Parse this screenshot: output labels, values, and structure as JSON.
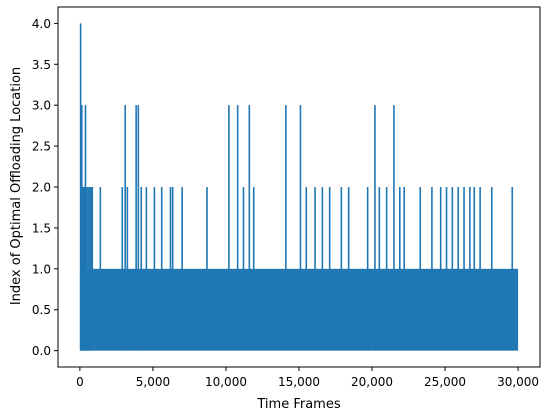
{
  "chart_data": {
    "type": "line",
    "title": "",
    "xlabel": "Time Frames",
    "ylabel": "Index of Optimal Offloading Location",
    "xlim": [
      -1500,
      31500
    ],
    "ylim": [
      -0.2,
      4.2
    ],
    "grid": false,
    "line_color": "#1f77b4",
    "x_tick_values": [
      0,
      5000,
      10000,
      15000,
      20000,
      25000,
      30000
    ],
    "x_tick_labels": [
      "0",
      "5,000",
      "10,000",
      "15,000",
      "20,000",
      "25,000",
      "30,000"
    ],
    "y_tick_values": [
      0,
      0.5,
      1,
      1.5,
      2,
      2.5,
      3,
      3.5,
      4
    ],
    "y_tick_labels": [
      "0.0",
      "0.5",
      "1.0",
      "1.5",
      "2.0",
      "2.5",
      "3.0",
      "3.5",
      "4.0"
    ],
    "series": [
      {
        "description_dense_range": {
          "x_start": 0,
          "x_end": 30000,
          "values_alternate_between": [
            0,
            1
          ]
        },
        "spikes_to_4": [
          {
            "x": 50,
            "y": 4.0
          }
        ],
        "spikes_to_3": [
          {
            "x": 130,
            "y": 3.0
          },
          {
            "x": 380,
            "y": 3.0
          },
          {
            "x": 3100,
            "y": 3.0
          },
          {
            "x": 3850,
            "y": 3.0
          },
          {
            "x": 4000,
            "y": 3.0
          },
          {
            "x": 10200,
            "y": 3.0
          },
          {
            "x": 10800,
            "y": 3.0
          },
          {
            "x": 11600,
            "y": 3.0
          },
          {
            "x": 14100,
            "y": 3.0
          },
          {
            "x": 15100,
            "y": 3.0
          },
          {
            "x": 20200,
            "y": 3.0
          },
          {
            "x": 21500,
            "y": 3.0
          }
        ],
        "spikes_to_2": [
          {
            "x": 200,
            "y": 2.0
          },
          {
            "x": 300,
            "y": 2.0
          },
          {
            "x": 450,
            "y": 2.0
          },
          {
            "x": 550,
            "y": 2.0
          },
          {
            "x": 650,
            "y": 2.0
          },
          {
            "x": 750,
            "y": 2.0
          },
          {
            "x": 850,
            "y": 2.0
          },
          {
            "x": 1400,
            "y": 2.0
          },
          {
            "x": 2900,
            "y": 2.0
          },
          {
            "x": 3250,
            "y": 2.0
          },
          {
            "x": 4200,
            "y": 2.0
          },
          {
            "x": 4550,
            "y": 2.0
          },
          {
            "x": 5100,
            "y": 2.0
          },
          {
            "x": 5600,
            "y": 2.0
          },
          {
            "x": 6200,
            "y": 2.0
          },
          {
            "x": 6350,
            "y": 2.0
          },
          {
            "x": 7000,
            "y": 2.0
          },
          {
            "x": 8700,
            "y": 2.0
          },
          {
            "x": 11200,
            "y": 2.0
          },
          {
            "x": 11900,
            "y": 2.0
          },
          {
            "x": 15500,
            "y": 2.0
          },
          {
            "x": 16100,
            "y": 2.0
          },
          {
            "x": 16600,
            "y": 2.0
          },
          {
            "x": 17100,
            "y": 2.0
          },
          {
            "x": 17900,
            "y": 2.0
          },
          {
            "x": 18400,
            "y": 2.0
          },
          {
            "x": 19700,
            "y": 2.0
          },
          {
            "x": 20500,
            "y": 2.0
          },
          {
            "x": 21000,
            "y": 2.0
          },
          {
            "x": 21900,
            "y": 2.0
          },
          {
            "x": 22200,
            "y": 2.0
          },
          {
            "x": 23300,
            "y": 2.0
          },
          {
            "x": 24100,
            "y": 2.0
          },
          {
            "x": 24700,
            "y": 2.0
          },
          {
            "x": 25100,
            "y": 2.0
          },
          {
            "x": 25500,
            "y": 2.0
          },
          {
            "x": 25900,
            "y": 2.0
          },
          {
            "x": 26300,
            "y": 2.0
          },
          {
            "x": 26700,
            "y": 2.0
          },
          {
            "x": 27000,
            "y": 2.0
          },
          {
            "x": 27400,
            "y": 2.0
          },
          {
            "x": 28200,
            "y": 2.0
          },
          {
            "x": 29600,
            "y": 2.0
          }
        ]
      }
    ]
  }
}
